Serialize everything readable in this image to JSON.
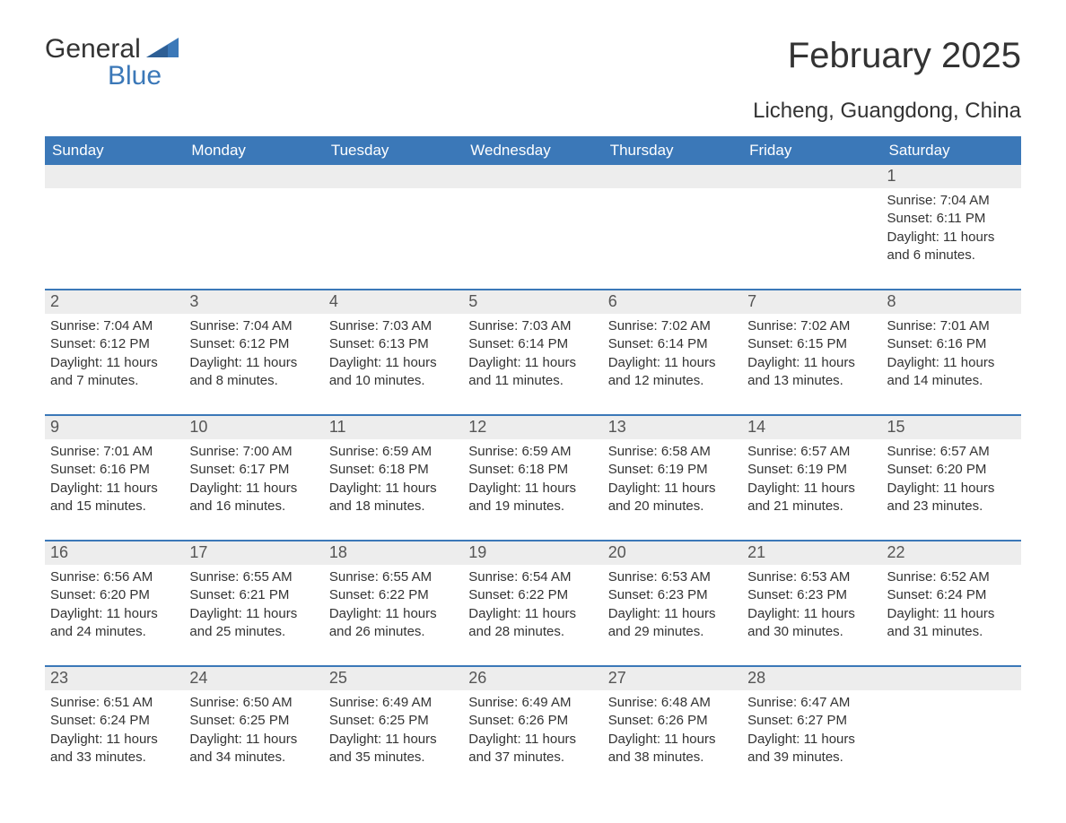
{
  "logo": {
    "word1": "General",
    "word2": "Blue"
  },
  "title": "February 2025",
  "location": "Licheng, Guangdong, China",
  "colors": {
    "header_bg": "#3b78b8",
    "header_text": "#ffffff",
    "date_bg": "#ededed",
    "text": "#333333",
    "brand_blue": "#3b78b8"
  },
  "day_names": [
    "Sunday",
    "Monday",
    "Tuesday",
    "Wednesday",
    "Thursday",
    "Friday",
    "Saturday"
  ],
  "weeks": [
    [
      {
        "date": "",
        "sunrise": "",
        "sunset": "",
        "daylight": ""
      },
      {
        "date": "",
        "sunrise": "",
        "sunset": "",
        "daylight": ""
      },
      {
        "date": "",
        "sunrise": "",
        "sunset": "",
        "daylight": ""
      },
      {
        "date": "",
        "sunrise": "",
        "sunset": "",
        "daylight": ""
      },
      {
        "date": "",
        "sunrise": "",
        "sunset": "",
        "daylight": ""
      },
      {
        "date": "",
        "sunrise": "",
        "sunset": "",
        "daylight": ""
      },
      {
        "date": "1",
        "sunrise": "Sunrise: 7:04 AM",
        "sunset": "Sunset: 6:11 PM",
        "daylight": "Daylight: 11 hours and 6 minutes."
      }
    ],
    [
      {
        "date": "2",
        "sunrise": "Sunrise: 7:04 AM",
        "sunset": "Sunset: 6:12 PM",
        "daylight": "Daylight: 11 hours and 7 minutes."
      },
      {
        "date": "3",
        "sunrise": "Sunrise: 7:04 AM",
        "sunset": "Sunset: 6:12 PM",
        "daylight": "Daylight: 11 hours and 8 minutes."
      },
      {
        "date": "4",
        "sunrise": "Sunrise: 7:03 AM",
        "sunset": "Sunset: 6:13 PM",
        "daylight": "Daylight: 11 hours and 10 minutes."
      },
      {
        "date": "5",
        "sunrise": "Sunrise: 7:03 AM",
        "sunset": "Sunset: 6:14 PM",
        "daylight": "Daylight: 11 hours and 11 minutes."
      },
      {
        "date": "6",
        "sunrise": "Sunrise: 7:02 AM",
        "sunset": "Sunset: 6:14 PM",
        "daylight": "Daylight: 11 hours and 12 minutes."
      },
      {
        "date": "7",
        "sunrise": "Sunrise: 7:02 AM",
        "sunset": "Sunset: 6:15 PM",
        "daylight": "Daylight: 11 hours and 13 minutes."
      },
      {
        "date": "8",
        "sunrise": "Sunrise: 7:01 AM",
        "sunset": "Sunset: 6:16 PM",
        "daylight": "Daylight: 11 hours and 14 minutes."
      }
    ],
    [
      {
        "date": "9",
        "sunrise": "Sunrise: 7:01 AM",
        "sunset": "Sunset: 6:16 PM",
        "daylight": "Daylight: 11 hours and 15 minutes."
      },
      {
        "date": "10",
        "sunrise": "Sunrise: 7:00 AM",
        "sunset": "Sunset: 6:17 PM",
        "daylight": "Daylight: 11 hours and 16 minutes."
      },
      {
        "date": "11",
        "sunrise": "Sunrise: 6:59 AM",
        "sunset": "Sunset: 6:18 PM",
        "daylight": "Daylight: 11 hours and 18 minutes."
      },
      {
        "date": "12",
        "sunrise": "Sunrise: 6:59 AM",
        "sunset": "Sunset: 6:18 PM",
        "daylight": "Daylight: 11 hours and 19 minutes."
      },
      {
        "date": "13",
        "sunrise": "Sunrise: 6:58 AM",
        "sunset": "Sunset: 6:19 PM",
        "daylight": "Daylight: 11 hours and 20 minutes."
      },
      {
        "date": "14",
        "sunrise": "Sunrise: 6:57 AM",
        "sunset": "Sunset: 6:19 PM",
        "daylight": "Daylight: 11 hours and 21 minutes."
      },
      {
        "date": "15",
        "sunrise": "Sunrise: 6:57 AM",
        "sunset": "Sunset: 6:20 PM",
        "daylight": "Daylight: 11 hours and 23 minutes."
      }
    ],
    [
      {
        "date": "16",
        "sunrise": "Sunrise: 6:56 AM",
        "sunset": "Sunset: 6:20 PM",
        "daylight": "Daylight: 11 hours and 24 minutes."
      },
      {
        "date": "17",
        "sunrise": "Sunrise: 6:55 AM",
        "sunset": "Sunset: 6:21 PM",
        "daylight": "Daylight: 11 hours and 25 minutes."
      },
      {
        "date": "18",
        "sunrise": "Sunrise: 6:55 AM",
        "sunset": "Sunset: 6:22 PM",
        "daylight": "Daylight: 11 hours and 26 minutes."
      },
      {
        "date": "19",
        "sunrise": "Sunrise: 6:54 AM",
        "sunset": "Sunset: 6:22 PM",
        "daylight": "Daylight: 11 hours and 28 minutes."
      },
      {
        "date": "20",
        "sunrise": "Sunrise: 6:53 AM",
        "sunset": "Sunset: 6:23 PM",
        "daylight": "Daylight: 11 hours and 29 minutes."
      },
      {
        "date": "21",
        "sunrise": "Sunrise: 6:53 AM",
        "sunset": "Sunset: 6:23 PM",
        "daylight": "Daylight: 11 hours and 30 minutes."
      },
      {
        "date": "22",
        "sunrise": "Sunrise: 6:52 AM",
        "sunset": "Sunset: 6:24 PM",
        "daylight": "Daylight: 11 hours and 31 minutes."
      }
    ],
    [
      {
        "date": "23",
        "sunrise": "Sunrise: 6:51 AM",
        "sunset": "Sunset: 6:24 PM",
        "daylight": "Daylight: 11 hours and 33 minutes."
      },
      {
        "date": "24",
        "sunrise": "Sunrise: 6:50 AM",
        "sunset": "Sunset: 6:25 PM",
        "daylight": "Daylight: 11 hours and 34 minutes."
      },
      {
        "date": "25",
        "sunrise": "Sunrise: 6:49 AM",
        "sunset": "Sunset: 6:25 PM",
        "daylight": "Daylight: 11 hours and 35 minutes."
      },
      {
        "date": "26",
        "sunrise": "Sunrise: 6:49 AM",
        "sunset": "Sunset: 6:26 PM",
        "daylight": "Daylight: 11 hours and 37 minutes."
      },
      {
        "date": "27",
        "sunrise": "Sunrise: 6:48 AM",
        "sunset": "Sunset: 6:26 PM",
        "daylight": "Daylight: 11 hours and 38 minutes."
      },
      {
        "date": "28",
        "sunrise": "Sunrise: 6:47 AM",
        "sunset": "Sunset: 6:27 PM",
        "daylight": "Daylight: 11 hours and 39 minutes."
      },
      {
        "date": "",
        "sunrise": "",
        "sunset": "",
        "daylight": ""
      }
    ]
  ]
}
